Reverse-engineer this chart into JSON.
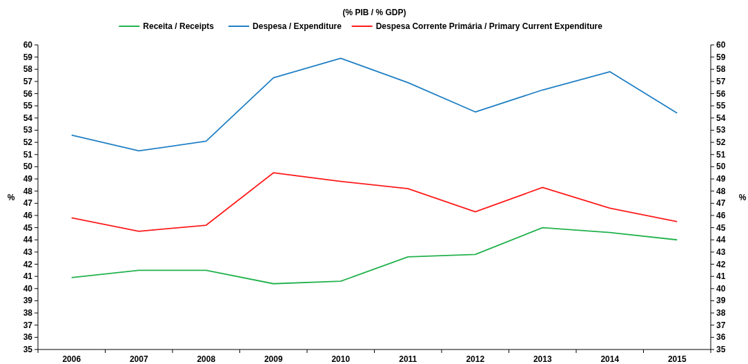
{
  "chart_data": {
    "type": "line",
    "title": "(% PIB / % GDP)",
    "ylabel": "%",
    "y2label": "%",
    "categories": [
      "2006",
      "2007",
      "2008",
      "2009",
      "2010",
      "2011",
      "2012",
      "2013",
      "2014",
      "2015"
    ],
    "series": [
      {
        "name": "Receita / Receipts",
        "color": "#22b24c",
        "values": [
          40.9,
          41.5,
          41.5,
          40.4,
          40.6,
          42.6,
          42.8,
          45.0,
          44.6,
          44.0
        ]
      },
      {
        "name": "Despesa / Expenditure",
        "color": "#1f7fc4",
        "values": [
          52.6,
          51.3,
          52.1,
          57.3,
          58.9,
          56.9,
          54.5,
          56.3,
          57.8,
          54.4
        ]
      },
      {
        "name": "Despesa Corrente Primária / Primary Current Expenditure",
        "color": "#ff1a1a",
        "values": [
          45.8,
          44.7,
          45.2,
          49.5,
          48.8,
          48.2,
          46.3,
          48.3,
          46.6,
          45.5
        ]
      }
    ],
    "ylim": [
      35,
      60
    ],
    "yticks": [
      35,
      36,
      37,
      38,
      39,
      40,
      41,
      42,
      43,
      44,
      45,
      46,
      47,
      48,
      49,
      50,
      51,
      52,
      53,
      54,
      55,
      56,
      57,
      58,
      59,
      60
    ],
    "y2lim": [
      35,
      60
    ],
    "y2ticks": [
      35,
      36,
      37,
      38,
      39,
      40,
      41,
      42,
      43,
      44,
      45,
      46,
      47,
      48,
      49,
      50,
      51,
      52,
      53,
      54,
      55,
      56,
      57,
      58,
      59,
      60
    ],
    "grid": false,
    "legend": "top",
    "marker": "none",
    "line_style": "solid"
  }
}
